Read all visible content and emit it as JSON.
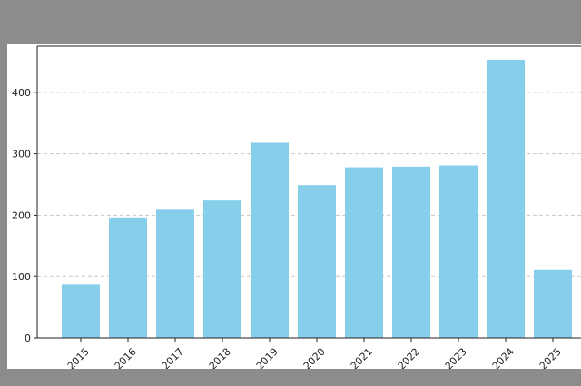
{
  "chart_data": {
    "type": "bar",
    "categories": [
      "2015",
      "2016",
      "2017",
      "2018",
      "2019",
      "2020",
      "2021",
      "2022",
      "2023",
      "2024",
      "2025"
    ],
    "series": [
      {
        "values": [
          88,
          195,
          209,
          224,
          318,
          249,
          278,
          279,
          281,
          453,
          111
        ]
      }
    ],
    "yticks": [
      0,
      100,
      200,
      300,
      400
    ],
    "ylim": [
      0,
      475
    ],
    "grid": "horizontal dashed",
    "bar_color": "#87ceeb",
    "title": "",
    "xlabel": "",
    "ylabel": ""
  }
}
